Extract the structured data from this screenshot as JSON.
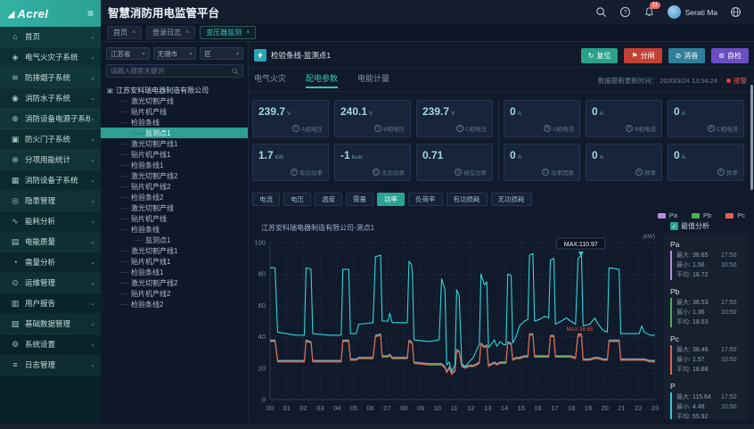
{
  "app": {
    "logo_text": "Acrel",
    "title": "智慧消防用电监管平台",
    "user_name": "Serati Ma",
    "badge_count": "11"
  },
  "icon_glyphs": {
    "home-icon": "⌂",
    "electric-fire-icon": "◈",
    "smoke-icon": "≋",
    "fire-water-icon": "◉",
    "power-icon": "⊕",
    "fire-door-icon": "▣",
    "energy-stat-icon": "⊗",
    "fire-device-icon": "▦",
    "hazard-icon": "◎",
    "energy-analysis-icon": "∿",
    "power-quality-icon": "▤",
    "demand-icon": "◔",
    "ops-icon": "⊙",
    "report-icon": "▥",
    "base-data-icon": "▧",
    "settings-icon": "⚙",
    "log-icon": "≡",
    "chevron-down-icon": "⌄",
    "caret-down-icon": "▾",
    "close-icon": "×",
    "hamburger-icon": "≡",
    "check-icon": "✓",
    "reset-icon": "↻",
    "trip-icon": "⚑",
    "mute-icon": "⊘",
    "selftest-icon": "⊚",
    "org-icon": "▣"
  },
  "sidebar": {
    "items": [
      {
        "label": "首页",
        "icon": "home-icon"
      },
      {
        "label": "电气火灾子系统",
        "icon": "electric-fire-icon"
      },
      {
        "label": "防排烟子系统",
        "icon": "smoke-icon"
      },
      {
        "label": "消防水子系统",
        "icon": "fire-water-icon"
      },
      {
        "label": "消防设备电源子系统",
        "icon": "power-icon"
      },
      {
        "label": "防火门子系统",
        "icon": "fire-door-icon"
      },
      {
        "label": "分项用能统计",
        "icon": "energy-stat-icon"
      },
      {
        "label": "消防设备子系统",
        "icon": "fire-device-icon"
      },
      {
        "label": "隐患管理",
        "icon": "hazard-icon"
      },
      {
        "label": "能耗分析",
        "icon": "energy-analysis-icon"
      },
      {
        "label": "电能质量",
        "icon": "power-quality-icon"
      },
      {
        "label": "需量分析",
        "icon": "demand-icon"
      },
      {
        "label": "运维管理",
        "icon": "ops-icon"
      },
      {
        "label": "用户报告",
        "icon": "report-icon"
      },
      {
        "label": "基础数据管理",
        "icon": "base-data-icon"
      },
      {
        "label": "系统设置",
        "icon": "settings-icon"
      },
      {
        "label": "日志管理",
        "icon": "log-icon"
      }
    ]
  },
  "page_tabs": [
    {
      "label": "首页",
      "active": false
    },
    {
      "label": "登录日志",
      "active": false
    },
    {
      "label": "变压器监测",
      "active": true
    }
  ],
  "filters": {
    "selects": [
      "江苏省",
      "无锡市",
      "区"
    ],
    "search_placeholder": "请输入搜索关键词"
  },
  "tree": {
    "root": "江苏安科瑞电器制造有限公司",
    "nodes": [
      {
        "label": "激光切割产线",
        "level": 1,
        "selected": false
      },
      {
        "label": "贴片机产线",
        "level": 1,
        "selected": false
      },
      {
        "label": "检验条线",
        "level": 1,
        "selected": false
      },
      {
        "label": "监测点1",
        "level": 2,
        "selected": true
      },
      {
        "label": "激光切割产线1",
        "level": 1,
        "selected": false
      },
      {
        "label": "贴片机产线1",
        "level": 1,
        "selected": false
      },
      {
        "label": "检验条线1",
        "level": 1,
        "selected": false
      },
      {
        "label": "激光切割产线2",
        "level": 1,
        "selected": false
      },
      {
        "label": "贴片机产线2",
        "level": 1,
        "selected": false
      },
      {
        "label": "检验条线2",
        "level": 1,
        "selected": false
      },
      {
        "label": "激光切割产线",
        "level": 1,
        "selected": false
      },
      {
        "label": "贴片机产线",
        "level": 1,
        "selected": false
      },
      {
        "label": "检验条线",
        "level": 1,
        "selected": false
      },
      {
        "label": "监测点1",
        "level": 2,
        "selected": false
      },
      {
        "label": "激光切割产线1",
        "level": 1,
        "selected": false
      },
      {
        "label": "贴片机产线1",
        "level": 1,
        "selected": false
      },
      {
        "label": "检验条线1",
        "level": 1,
        "selected": false
      },
      {
        "label": "激光切割产线2",
        "level": 1,
        "selected": false
      },
      {
        "label": "贴片机产线2",
        "level": 1,
        "selected": false
      },
      {
        "label": "检验条线2",
        "level": 1,
        "selected": false
      }
    ]
  },
  "device": {
    "title": "检验条线-监测点1",
    "buttons": [
      {
        "label": "复位",
        "icon": "reset-icon",
        "color": "#2aa188"
      },
      {
        "label": "分闸",
        "icon": "trip-icon",
        "color": "#c14234"
      },
      {
        "label": "消音",
        "icon": "mute-icon",
        "color": "#2f7f9a"
      },
      {
        "label": "自检",
        "icon": "selftest-icon",
        "color": "#6a4fc1"
      }
    ],
    "tabs": [
      {
        "label": "电气火灾",
        "active": false
      },
      {
        "label": "配电参数",
        "active": true
      },
      {
        "label": "电能计量",
        "active": false
      }
    ],
    "update_time_label": "数据最新更新时间：",
    "update_time": "2020/3/24 13:54:24",
    "alarm_label": "报警"
  },
  "cards": {
    "left": [
      {
        "value": "239.7",
        "unit": "V",
        "label": "A相电压",
        "letter": "V"
      },
      {
        "value": "240.1",
        "unit": "V",
        "label": "B相电压",
        "letter": "V"
      },
      {
        "value": "239.7",
        "unit": "V",
        "label": "C相电压",
        "letter": "V"
      },
      {
        "value": "1.7",
        "unit": "kW",
        "label": "有功功率",
        "letter": "P"
      },
      {
        "value": "-1",
        "unit": "kvar",
        "label": "无功功率",
        "letter": "Q"
      },
      {
        "value": "0.71",
        "unit": "",
        "label": "视在功率",
        "letter": "S"
      }
    ],
    "right": [
      {
        "value": "0",
        "unit": "A",
        "label": "A相电流",
        "letter": "A"
      },
      {
        "value": "0",
        "unit": "A",
        "label": "B相电流",
        "letter": "A"
      },
      {
        "value": "0",
        "unit": "A",
        "label": "C相电流",
        "letter": "A"
      },
      {
        "value": "0",
        "unit": "A",
        "label": "功率因数",
        "letter": "C"
      },
      {
        "value": "0",
        "unit": "A",
        "label": "频率",
        "letter": "F"
      },
      {
        "value": "0",
        "unit": "A",
        "label": "频率",
        "letter": "F"
      }
    ]
  },
  "chart": {
    "tabs": [
      {
        "label": "电流",
        "active": false
      },
      {
        "label": "电压",
        "active": false
      },
      {
        "label": "温度",
        "active": false
      },
      {
        "label": "需量",
        "active": false
      },
      {
        "label": "功率",
        "active": true
      },
      {
        "label": "负荷率",
        "active": false
      },
      {
        "label": "有功损耗",
        "active": false
      },
      {
        "label": "无功损耗",
        "active": false
      }
    ],
    "legend": [
      {
        "name": "Pa",
        "color": "#b48ce0"
      },
      {
        "name": "Pb",
        "color": "#4cae55"
      },
      {
        "name": "Pc",
        "color": "#e0614f"
      }
    ],
    "analysis_label": "最值分析",
    "stats_labels": {
      "max": "最大:",
      "min": "最小:",
      "avg": "平均:"
    },
    "stats": [
      {
        "name": "Pa",
        "color": "#b48ce0",
        "max": "38.65",
        "max_time": "17:50",
        "min": "1.56",
        "min_time": "10:50",
        "avg": "18.72"
      },
      {
        "name": "Pb",
        "color": "#4cae55",
        "max": "38.53",
        "max_time": "17:50",
        "min": "1.36",
        "min_time": "10:50",
        "avg": "18.53"
      },
      {
        "name": "Pc",
        "color": "#e0614f",
        "max": "38.46",
        "max_time": "17:50",
        "min": "1.57",
        "min_time": "10:50",
        "avg": "18.68"
      },
      {
        "name": "P",
        "color": "#35c8d0",
        "max": "115.64",
        "max_time": "17:50",
        "min": "4.48",
        "min_time": "10:50",
        "avg": "55.92"
      }
    ]
  },
  "chart_data": {
    "type": "line",
    "title": "江苏安科瑞电器制造有限公司-测点1",
    "unit": "(kW)",
    "ylim": [
      0,
      100
    ],
    "y_ticks": [
      0,
      20,
      40,
      60,
      80,
      100
    ],
    "x_ticks": [
      "00",
      "01",
      "02",
      "03",
      "04",
      "05",
      "06",
      "07",
      "08",
      "09",
      "10",
      "11",
      "12",
      "13",
      "14",
      "15",
      "16",
      "17",
      "18",
      "19",
      "20",
      "21",
      "22",
      "23"
    ],
    "t": [
      0,
      0.3,
      0.45,
      1.5,
      2.05,
      2.15,
      2.45,
      2.55,
      3.5,
      4.25,
      4.35,
      4.7,
      4.8,
      5.15,
      5.3,
      6.15,
      6.3,
      6.6,
      6.7,
      7.05,
      7.15,
      7.3,
      8.2,
      8.3,
      8.45,
      8.5,
      8.6,
      9.5,
      10.1,
      10.25,
      10.45,
      10.55,
      10.7,
      10.85,
      11.05,
      11.15,
      11.3,
      11.45,
      11.65,
      11.9,
      12.15,
      12.35,
      12.5,
      12.6,
      12.8,
      12.95,
      13.05,
      13.2,
      13.4,
      13.55,
      13.75,
      13.95,
      14.1,
      14.2,
      14.4,
      14.5,
      14.7,
      14.9,
      15.2,
      15.4,
      15.5,
      15.7,
      15.8,
      16.1,
      16.4,
      16.65,
      16.75,
      16.95,
      17.05,
      17.4,
      17.7,
      17.95,
      18.25,
      18.4,
      18.6,
      18.7,
      19.1,
      19.4,
      19.6,
      19.9,
      20.15,
      20.25,
      20.85,
      20.95,
      21.5,
      22.05,
      22.2,
      22.35,
      22.7,
      23
    ],
    "total_kw": [
      84,
      84,
      43,
      41,
      41,
      84,
      83,
      42,
      41,
      41,
      83,
      83,
      42,
      42,
      48,
      49,
      91,
      92,
      50,
      50,
      55,
      49,
      49,
      88,
      86,
      80,
      38,
      37,
      38,
      77,
      70,
      22,
      24,
      18,
      22,
      70,
      66,
      23,
      21,
      24,
      27,
      32,
      35,
      80,
      73,
      75,
      33,
      35,
      38,
      34,
      37,
      35,
      35,
      80,
      79,
      36,
      40,
      47,
      50,
      51,
      92,
      93,
      50,
      51,
      53,
      52,
      89,
      90,
      48,
      50,
      52,
      50,
      48,
      90,
      92,
      47,
      48,
      52,
      48,
      44,
      43,
      84,
      83,
      42,
      42,
      42,
      47,
      43,
      41,
      41
    ],
    "phase_kw": [
      37,
      37,
      24,
      24,
      24,
      37,
      36,
      24,
      24,
      24,
      37,
      37,
      25,
      25,
      26,
      26,
      40,
      41,
      27,
      27,
      28,
      26,
      26,
      37,
      36,
      35,
      23,
      22,
      22,
      22,
      20,
      17,
      20,
      16,
      18,
      31,
      30,
      21,
      20,
      21,
      21,
      22,
      23,
      35,
      33,
      34,
      21,
      22,
      23,
      22,
      23,
      23,
      23,
      36,
      35,
      25,
      26,
      26,
      27,
      27,
      41,
      41,
      27,
      27,
      27,
      27,
      40,
      40,
      27,
      27,
      27,
      27,
      26,
      41,
      41,
      25,
      25,
      26,
      26,
      25,
      25,
      37,
      37,
      25,
      25,
      25,
      25,
      25,
      24,
      24
    ],
    "series": [
      {
        "name": "Pa",
        "color": "#b48ce0",
        "values_key": "phase_kw",
        "offset": 0.9
      },
      {
        "name": "Pb",
        "color": "#4cae55",
        "values_key": "phase_kw",
        "offset": 0.45
      },
      {
        "name": "Pc",
        "color": "#e0614f",
        "values_key": "phase_kw",
        "offset": 0
      },
      {
        "name": "P",
        "color": "#2fd5d8",
        "values_key": "total_kw",
        "offset": 0
      }
    ],
    "annotations": [
      {
        "text": "MAX:110.97",
        "t": 18.57,
        "v": 92,
        "style": "tooltip"
      },
      {
        "text": "MAX:38.65",
        "t": 18.5,
        "v": 41,
        "style": "red-label"
      }
    ]
  }
}
